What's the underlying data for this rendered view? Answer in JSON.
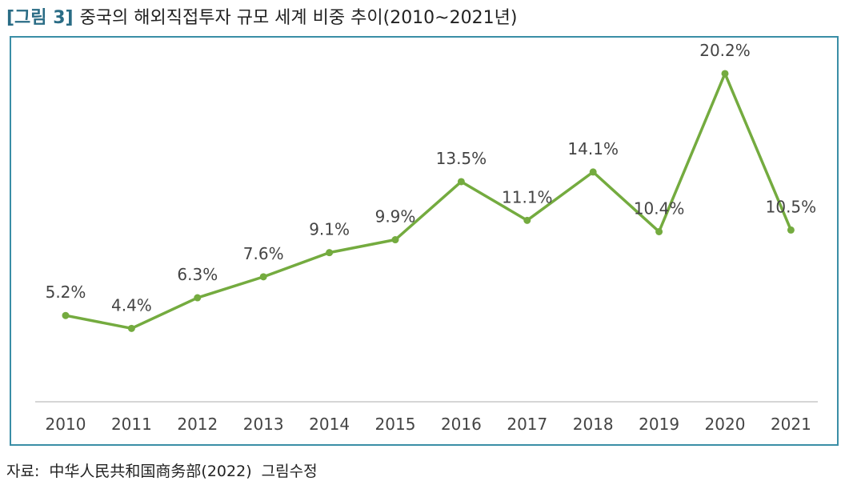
{
  "figure": {
    "number": "[그림 3]",
    "title": "중국의 해외직접투자 규모 세계 비중 추이(2010~2021년)"
  },
  "colors": {
    "line": "#74ab3f",
    "frame": "#3a8ea6",
    "axis": "#c8c8c8",
    "text": "#444444"
  },
  "chart_data": {
    "type": "line",
    "title": "중국의 해외직접투자 규모 세계 비중 추이(2010~2021년)",
    "categories": [
      "2010",
      "2011",
      "2012",
      "2013",
      "2014",
      "2015",
      "2016",
      "2017",
      "2018",
      "2019",
      "2020",
      "2021"
    ],
    "series": [
      {
        "values": [
          5.2,
          4.4,
          6.3,
          7.6,
          9.1,
          9.9,
          13.5,
          11.1,
          14.1,
          10.4,
          20.2,
          10.5
        ],
        "labels": [
          "5.2%",
          "4.4%",
          "6.3%",
          "7.6%",
          "9.1%",
          "9.9%",
          "13.5%",
          "11.1%",
          "14.1%",
          "10.4%",
          "20.2%",
          "10.5%"
        ]
      }
    ],
    "ylim": [
      0,
      25
    ],
    "grid": false,
    "legend": "none"
  },
  "source": {
    "label": "자료:",
    "text": "中华人民共和国商务部(2022)",
    "note": "그림수정"
  }
}
